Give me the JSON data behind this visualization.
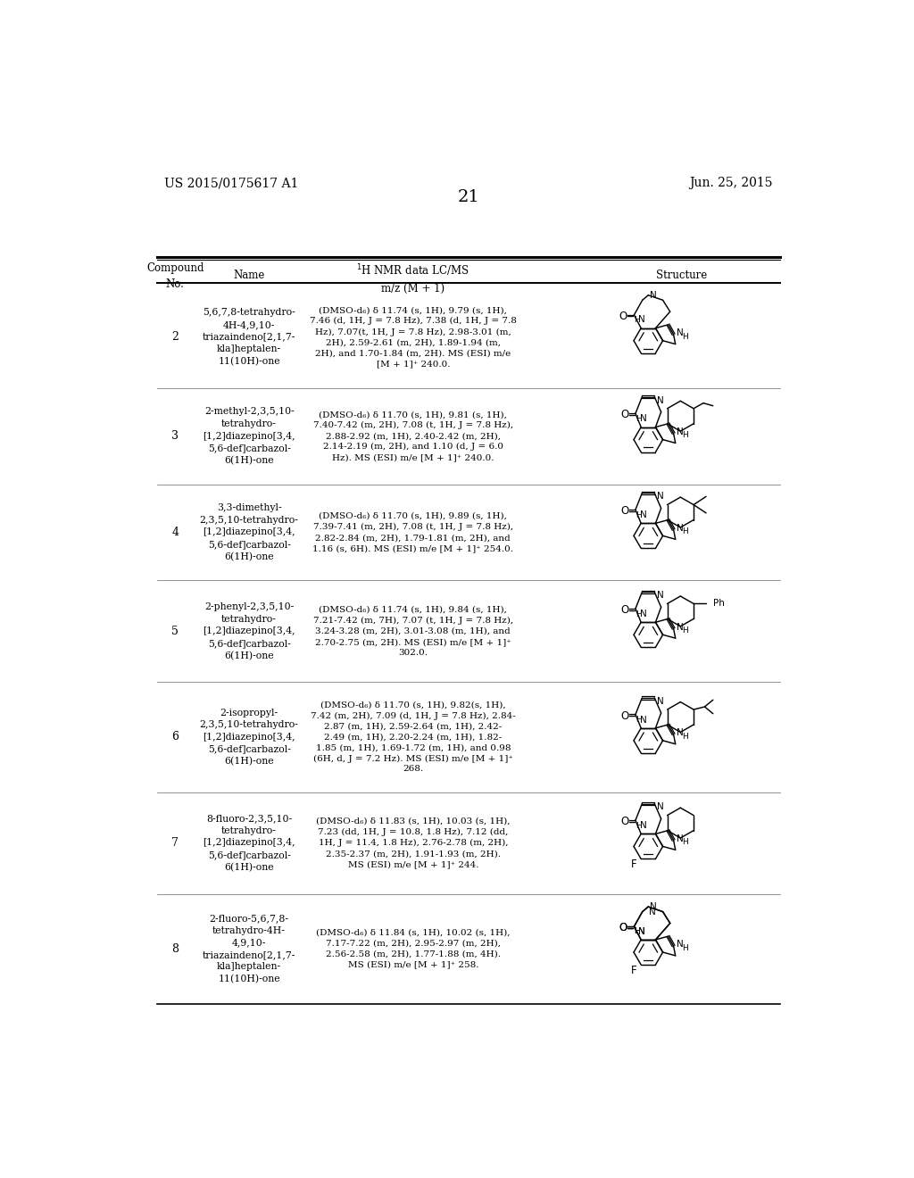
{
  "page_header_left": "US 2015/0175617 A1",
  "page_header_right": "Jun. 25, 2015",
  "page_number": "21",
  "background_color": "#ffffff",
  "text_color": "#000000",
  "compounds": [
    {
      "no": "2",
      "name": "5,6,7,8-tetrahydro-\n4H-4,9,10-\ntriazaindeno[2,1,7-\nkla]heptalen-\n11(10H)-one",
      "nmr": "(DMSO-d₆) δ 11.74 (s, 1H), 9.79 (s, 1H),\n7.46 (d, 1H, J = 7.8 Hz), 7.38 (d, 1H, J = 7.8\nHz), 7.07(t, 1H, J = 7.8 Hz), 2.98-3.01 (m,\n2H), 2.59-2.61 (m, 2H), 1.89-1.94 (m,\n2H), and 1.70-1.84 (m, 2H). MS (ESI) m/e\n[M + 1]⁺ 240.0.",
      "structure_type": "type_heptane"
    },
    {
      "no": "3",
      "name": "2-methyl-2,3,5,10-\ntetrahydro-\n[1,2]diazepino[3,4,\n5,6-def]carbazol-\n6(1H)-one",
      "nmr": "(DMSO-d₆) δ 11.70 (s, 1H), 9.81 (s, 1H),\n7.40-7.42 (m, 2H), 7.08 (t, 1H, J = 7.8 Hz),\n2.88-2.92 (m, 1H), 2.40-2.42 (m, 2H),\n2.14-2.19 (m, 2H), and 1.10 (d, J = 6.0\nHz). MS (ESI) m/e [M + 1]⁺ 240.0.",
      "structure_type": "type_methyl"
    },
    {
      "no": "4",
      "name": "3,3-dimethyl-\n2,3,5,10-tetrahydro-\n[1,2]diazepino[3,4,\n5,6-def]carbazol-\n6(1H)-one",
      "nmr": "(DMSO-d₆) δ 11.70 (s, 1H), 9.89 (s, 1H),\n7.39-7.41 (m, 2H), 7.08 (t, 1H, J = 7.8 Hz),\n2.82-2.84 (m, 2H), 1.79-1.81 (m, 2H), and\n1.16 (s, 6H). MS (ESI) m/e [M + 1]⁺ 254.0.",
      "structure_type": "type_dimethyl"
    },
    {
      "no": "5",
      "name": "2-phenyl-2,3,5,10-\ntetrahydro-\n[1,2]diazepino[3,4,\n5,6-def]carbazol-\n6(1H)-one",
      "nmr": "(DMSO-d₆) δ 11.74 (s, 1H), 9.84 (s, 1H),\n7.21-7.42 (m, 7H), 7.07 (t, 1H, J = 7.8 Hz),\n3.24-3.28 (m, 2H), 3.01-3.08 (m, 1H), and\n2.70-2.75 (m, 2H). MS (ESI) m/e [M + 1]⁺\n302.0.",
      "structure_type": "type_phenyl"
    },
    {
      "no": "6",
      "name": "2-isopropyl-\n2,3,5,10-tetrahydro-\n[1,2]diazepino[3,4,\n5,6-def]carbazol-\n6(1H)-one",
      "nmr": "(DMSO-d₆) δ 11.70 (s, 1H), 9.82(s, 1H),\n7.42 (m, 2H), 7.09 (d, 1H, J = 7.8 Hz), 2.84-\n2.87 (m, 1H), 2.59-2.64 (m, 1H), 2.42-\n2.49 (m, 1H), 2.20-2.24 (m, 1H), 1.82-\n1.85 (m, 1H), 1.69-1.72 (m, 1H), and 0.98\n(6H, d, J = 7.2 Hz). MS (ESI) m/e [M + 1]⁺\n268.",
      "structure_type": "type_isopropyl"
    },
    {
      "no": "7",
      "name": "8-fluoro-2,3,5,10-\ntetrahydro-\n[1,2]diazepino[3,4,\n5,6-def]carbazol-\n6(1H)-one",
      "nmr": "(DMSO-d₆) δ 11.83 (s, 1H), 10.03 (s, 1H),\n7.23 (dd, 1H, J = 10.8, 1.8 Hz), 7.12 (dd,\n1H, J = 11.4, 1.8 Hz), 2.76-2.78 (m, 2H),\n2.35-2.37 (m, 2H), 1.91-1.93 (m, 2H).\nMS (ESI) m/e [M + 1]⁺ 244.",
      "structure_type": "type_fluoro_hex"
    },
    {
      "no": "8",
      "name": "2-fluoro-5,6,7,8-\ntetrahydro-4H-\n4,9,10-\ntriazaindeno[2,1,7-\nkla]heptalen-\n11(10H)-one",
      "nmr": "(DMSO-d₆) δ 11.84 (s, 1H), 10.02 (s, 1H),\n7.17-7.22 (m, 2H), 2.95-2.97 (m, 2H),\n2.56-2.58 (m, 2H), 1.77-1.88 (m, 4H).\nMS (ESI) m/e [M + 1]⁺ 258.",
      "structure_type": "type_fluoro_hept"
    }
  ]
}
